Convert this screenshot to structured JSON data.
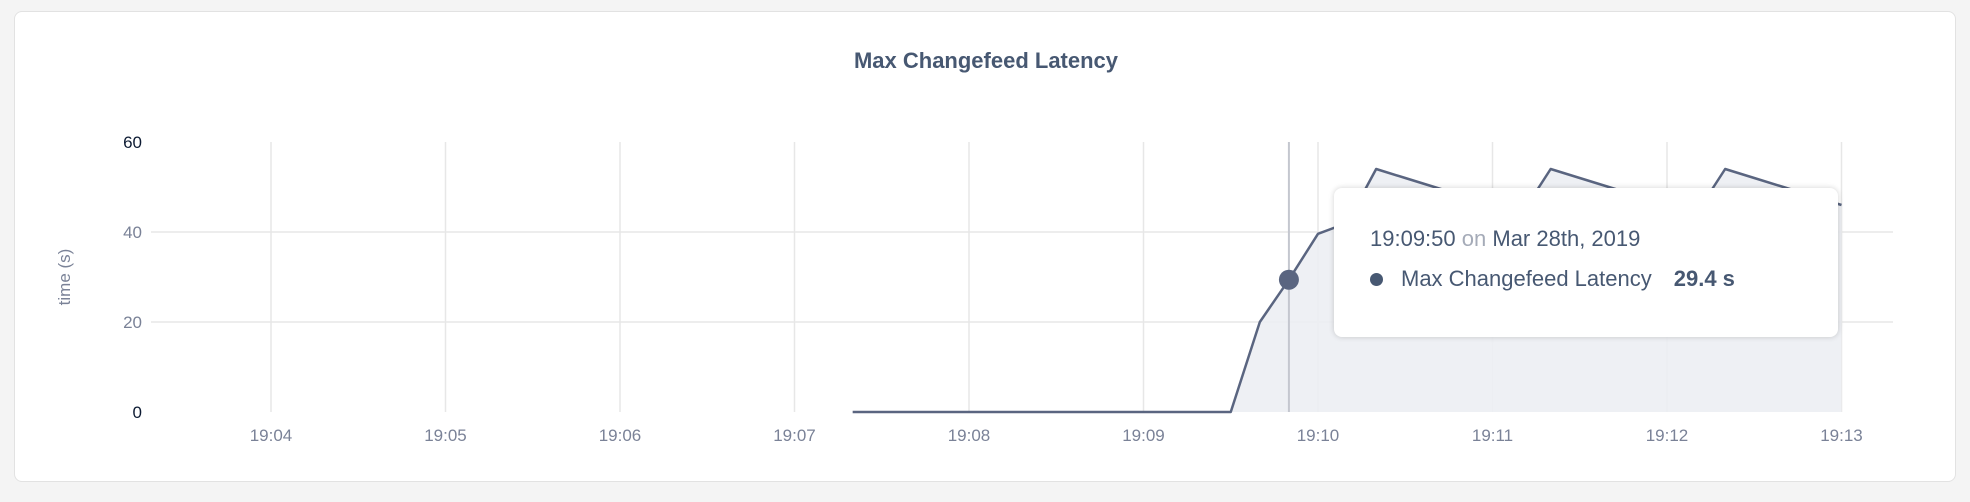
{
  "chart_data": {
    "type": "area",
    "title": "Max Changefeed Latency",
    "ylabel": "time (s)",
    "xlabel": "",
    "ylim": [
      0,
      60
    ],
    "yticks": [
      "0",
      "20",
      "40",
      "60"
    ],
    "xlim": [
      "19:03:30",
      "19:13:15"
    ],
    "xticks": [
      "19:04",
      "19:05",
      "19:06",
      "19:07",
      "19:08",
      "19:09",
      "19:10",
      "19:11",
      "19:12",
      "19:13"
    ],
    "grid": true,
    "colors": {
      "line": "#5a6580",
      "fill": "#eceef3",
      "grid": "#e7e7e7"
    },
    "series": [
      {
        "name": "Max Changefeed Latency",
        "x": [
          "19:07:20",
          "19:07:30",
          "19:07:40",
          "19:07:50",
          "19:08:00",
          "19:08:10",
          "19:08:20",
          "19:08:30",
          "19:08:40",
          "19:08:50",
          "19:09:00",
          "19:09:10",
          "19:09:20",
          "19:09:30",
          "19:09:40",
          "19:09:50",
          "19:10:00",
          "19:10:10",
          "19:10:20",
          "19:10:30",
          "19:10:40",
          "19:10:50",
          "19:11:00",
          "19:11:10",
          "19:11:20",
          "19:11:30",
          "19:11:40",
          "19:11:50",
          "19:12:00",
          "19:12:10",
          "19:12:20",
          "19:12:30",
          "19:12:40",
          "19:12:50",
          "19:13:00"
        ],
        "values": [
          0,
          0,
          0,
          0,
          0,
          0,
          0,
          0,
          0,
          0,
          0,
          0,
          0,
          0,
          20,
          29.4,
          39.6,
          42,
          54,
          52,
          50,
          48,
          46,
          44,
          54,
          52,
          50,
          48,
          46,
          44,
          54,
          52,
          50,
          48,
          46
        ]
      }
    ]
  },
  "tooltip": {
    "time": "19:09:50",
    "on": "on",
    "date": "Mar 28th, 2019",
    "series_name": "Max Changefeed Latency",
    "value": "29.4 s",
    "hover_x": "19:09:50"
  }
}
